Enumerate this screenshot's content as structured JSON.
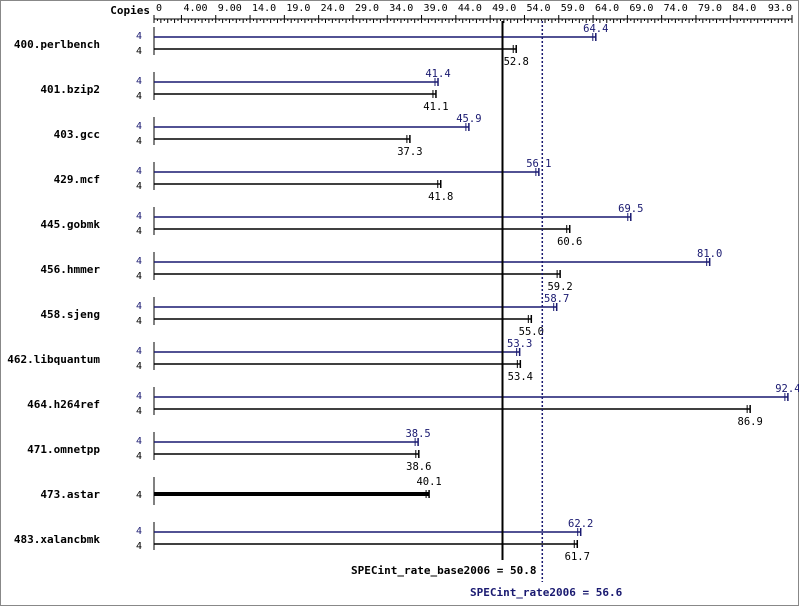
{
  "chart_data": {
    "type": "bar",
    "orientation": "horizontal",
    "axis_header": "Copies",
    "x_ticks": [
      "0",
      "4.00",
      "9.00",
      "14.0",
      "19.0",
      "24.0",
      "29.0",
      "34.0",
      "39.0",
      "44.0",
      "49.0",
      "54.0",
      "59.0",
      "64.0",
      "69.0",
      "74.0",
      "79.0",
      "84.0",
      "93.0"
    ],
    "x_tick_values": [
      0,
      4,
      9,
      14,
      19,
      24,
      29,
      34,
      39,
      44,
      49,
      54,
      59,
      64,
      69,
      74,
      79,
      84,
      93
    ],
    "xlim": [
      0,
      93
    ],
    "grid": false,
    "colors": {
      "peak": "#191970",
      "base": "#000000"
    },
    "benchmarks": [
      {
        "name": "400.perlbench",
        "peak": {
          "copies": "4",
          "value": 64.4
        },
        "base": {
          "copies": "4",
          "value": 52.8
        }
      },
      {
        "name": "401.bzip2",
        "peak": {
          "copies": "4",
          "value": 41.4
        },
        "base": {
          "copies": "4",
          "value": 41.1
        }
      },
      {
        "name": "403.gcc",
        "peak": {
          "copies": "4",
          "value": 45.9
        },
        "base": {
          "copies": "4",
          "value": 37.3
        }
      },
      {
        "name": "429.mcf",
        "peak": {
          "copies": "4",
          "value": 56.1
        },
        "base": {
          "copies": "4",
          "value": 41.8
        }
      },
      {
        "name": "445.gobmk",
        "peak": {
          "copies": "4",
          "value": 69.5
        },
        "base": {
          "copies": "4",
          "value": 60.6
        }
      },
      {
        "name": "456.hmmer",
        "peak": {
          "copies": "4",
          "value": 81.0
        },
        "base": {
          "copies": "4",
          "value": 59.2
        }
      },
      {
        "name": "458.sjeng",
        "peak": {
          "copies": "4",
          "value": 58.7
        },
        "base": {
          "copies": "4",
          "value": 55.0
        }
      },
      {
        "name": "462.libquantum",
        "peak": {
          "copies": "4",
          "value": 53.3
        },
        "base": {
          "copies": "4",
          "value": 53.4
        }
      },
      {
        "name": "464.h264ref",
        "peak": {
          "copies": "4",
          "value": 92.4
        },
        "base": {
          "copies": "4",
          "value": 86.9
        }
      },
      {
        "name": "471.omnetpp",
        "peak": {
          "copies": "4",
          "value": 38.5
        },
        "base": {
          "copies": "4",
          "value": 38.6
        }
      },
      {
        "name": "473.astar",
        "combined": {
          "copies": "4",
          "value": 40.1
        }
      },
      {
        "name": "483.xalancbmk",
        "peak": {
          "copies": "4",
          "value": 62.2
        },
        "base": {
          "copies": "4",
          "value": 61.7
        }
      }
    ],
    "reference_lines": [
      {
        "label": "SPECint_rate_base2006 = 50.8",
        "value": 50.8,
        "style": "solid",
        "color": "#000000"
      },
      {
        "label": "SPECint_rate2006 = 56.6",
        "value": 56.6,
        "style": "dotted",
        "color": "#191970"
      }
    ]
  }
}
